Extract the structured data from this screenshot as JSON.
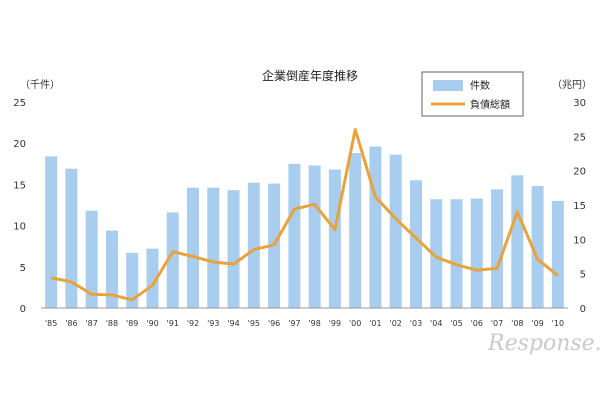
{
  "chart_data": {
    "type": "bar+line",
    "title": "企業倒産年度推移",
    "left_unit": "（千件）",
    "right_unit": "（兆円）",
    "categories": [
      "'85",
      "'86",
      "'87",
      "'88",
      "'89",
      "'90",
      "'91",
      "'92",
      "'93",
      "'94",
      "'95",
      "'96",
      "'97",
      "'98",
      "'99",
      "'00",
      "'01",
      "'02",
      "'03",
      "'04",
      "'05",
      "'06",
      "'07",
      "'08",
      "'09",
      "'10"
    ],
    "series": [
      {
        "name": "件数",
        "kind": "bar",
        "axis": "left",
        "color": "#a8cdee",
        "values": [
          18.4,
          16.9,
          11.8,
          9.4,
          6.7,
          7.2,
          11.6,
          14.6,
          14.6,
          14.3,
          15.2,
          15.1,
          17.5,
          17.3,
          16.8,
          18.8,
          19.6,
          18.6,
          15.5,
          13.2,
          13.2,
          13.3,
          14.4,
          16.1,
          14.8,
          13.0
        ]
      },
      {
        "name": "負債総額",
        "kind": "line",
        "axis": "right",
        "color": "#e8a33d",
        "values": [
          4.4,
          3.8,
          2.0,
          1.9,
          1.2,
          3.3,
          8.2,
          7.5,
          6.7,
          6.4,
          8.5,
          9.2,
          14.4,
          15.1,
          11.4,
          26.0,
          16.2,
          13.0,
          10.2,
          7.4,
          6.3,
          5.5,
          5.8,
          14.0,
          7.1,
          4.7
        ]
      }
    ],
    "ylim_left": [
      0,
      25
    ],
    "ylim_right": [
      0,
      30
    ],
    "yticks_left": [
      "0",
      "5",
      "10",
      "15",
      "20",
      "25"
    ],
    "yticks_right": [
      "0",
      "5",
      "10",
      "15",
      "20",
      "25",
      "30"
    ],
    "grid": false,
    "legend": "top-right"
  },
  "watermark": "Response."
}
